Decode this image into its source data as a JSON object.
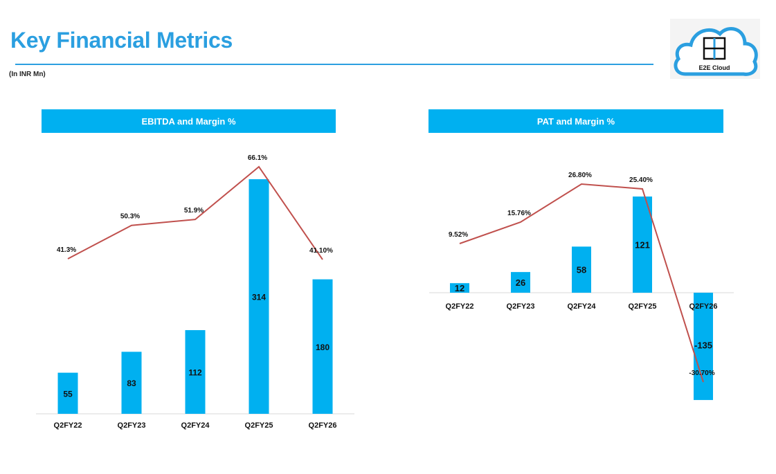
{
  "page": {
    "title": "Key Financial Metrics",
    "unit_note": "(In INR Mn)",
    "logo_text": "E2E Cloud",
    "accent_color": "#2b9fe0",
    "bar_color": "#00b0f0",
    "line_color": "#c0504d"
  },
  "chart_data": [
    {
      "type": "bar",
      "title": "EBITDA and Margin %",
      "categories": [
        "Q2FY22",
        "Q2FY23",
        "Q2FY24",
        "Q2FY25",
        "Q2FY26"
      ],
      "series": [
        {
          "name": "EBITDA",
          "kind": "bar",
          "values": [
            55,
            83,
            112,
            314,
            180
          ],
          "labels": [
            "55",
            "83",
            "112",
            "314",
            "180"
          ]
        },
        {
          "name": "Margin %",
          "kind": "line",
          "values": [
            41.3,
            50.3,
            51.9,
            66.1,
            41.1
          ],
          "labels": [
            "41.3%",
            "50.3%",
            "51.9%",
            "66.1%",
            "41.10%"
          ]
        }
      ],
      "xlabel": "",
      "ylabel": "",
      "grid": false,
      "legend": "none"
    },
    {
      "type": "bar",
      "title": "PAT and Margin %",
      "categories": [
        "Q2FY22",
        "Q2FY23",
        "Q2FY24",
        "Q2FY25",
        "Q2FY26"
      ],
      "series": [
        {
          "name": "PAT",
          "kind": "bar",
          "values": [
            12,
            26,
            58,
            121,
            -135
          ],
          "labels": [
            "12",
            "26",
            "58",
            "121",
            "-135"
          ]
        },
        {
          "name": "Margin %",
          "kind": "line",
          "values": [
            9.52,
            15.76,
            26.8,
            25.4,
            -30.7
          ],
          "labels": [
            "9.52%",
            "15.76%",
            "26.80%",
            "25.40%",
            "-30.70%"
          ]
        }
      ],
      "xlabel": "",
      "ylabel": "",
      "grid": false,
      "legend": "none"
    }
  ]
}
